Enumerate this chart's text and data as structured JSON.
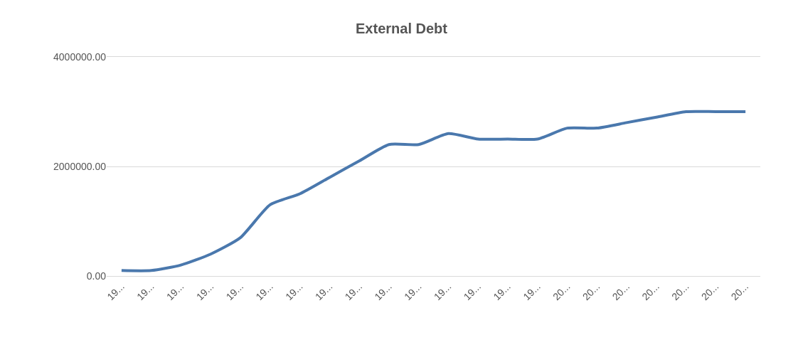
{
  "chart_data": {
    "type": "line",
    "title": "External Debt",
    "categories": [
      "19...",
      "19...",
      "19...",
      "19...",
      "19...",
      "19...",
      "19...",
      "19...",
      "19...",
      "19...",
      "19...",
      "19...",
      "19...",
      "19...",
      "19...",
      "20...",
      "20...",
      "20...",
      "20...",
      "20...",
      "20...",
      "20..."
    ],
    "series": [
      {
        "color": "#4a78ad",
        "values": [
          100000,
          100000,
          200000,
          400000,
          700000,
          1300000,
          1500000,
          1800000,
          2100000,
          2400000,
          2400000,
          2600000,
          2500000,
          2500000,
          2500000,
          2700000,
          2700000,
          2800000,
          2900000,
          3000000,
          3000000,
          3000000
        ]
      }
    ],
    "ylim": [
      0,
      4000000
    ],
    "yticks": [
      {
        "value": 0,
        "label": "0.00"
      },
      {
        "value": 2000000,
        "label": "2000000.00"
      },
      {
        "value": 4000000,
        "label": "4000000.00"
      }
    ],
    "grid": "y",
    "line_style": "solid"
  }
}
